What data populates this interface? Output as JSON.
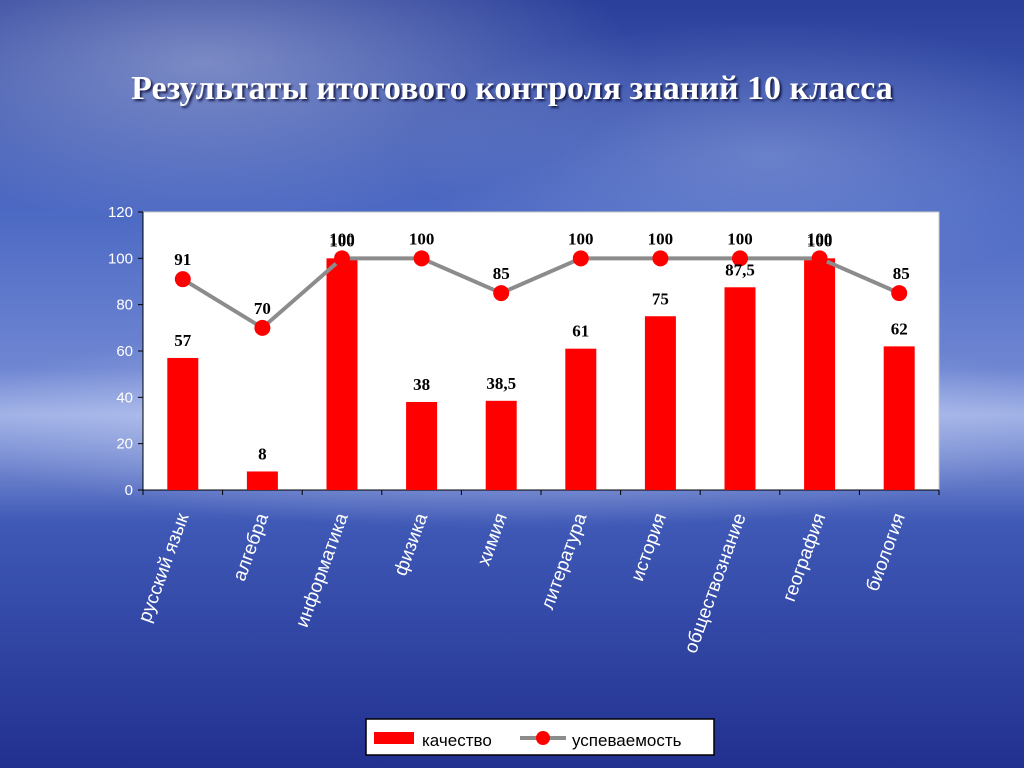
{
  "slide": {
    "title": "Результаты итогового контроля знаний 10 класса"
  },
  "chart_data": {
    "type": "bar",
    "title": "",
    "xlabel": "",
    "ylabel": "",
    "ylim": [
      0,
      120
    ],
    "yticks": [
      0,
      20,
      40,
      60,
      80,
      100,
      120
    ],
    "ytick_labels": [
      "0",
      "20",
      "40",
      "60",
      "80",
      "100",
      "120"
    ],
    "categories": [
      "русский язык",
      "алгебра",
      "информатика",
      "физика",
      "химия",
      "литература",
      "история",
      "обществознание",
      "география",
      "биология"
    ],
    "series": [
      {
        "name": "качество",
        "kind": "bar",
        "color": "#ff0000",
        "values": [
          57,
          8,
          100,
          38,
          38.5,
          61,
          75,
          87.5,
          100,
          62
        ],
        "labels": [
          "57",
          "8",
          "100",
          "38",
          "38,5",
          "61",
          "75",
          "87,5",
          "100",
          "62"
        ]
      },
      {
        "name": "успеваемость",
        "kind": "line",
        "color": "#ff0000",
        "line_color": "#8c8c8c",
        "values": [
          91,
          70,
          100,
          100,
          85,
          100,
          100,
          100,
          100,
          85
        ],
        "labels": [
          "91",
          "70",
          "100",
          "100",
          "85",
          "100",
          "100",
          "100",
          "100",
          "85"
        ]
      }
    ],
    "grid": false,
    "legend": "bottom"
  }
}
